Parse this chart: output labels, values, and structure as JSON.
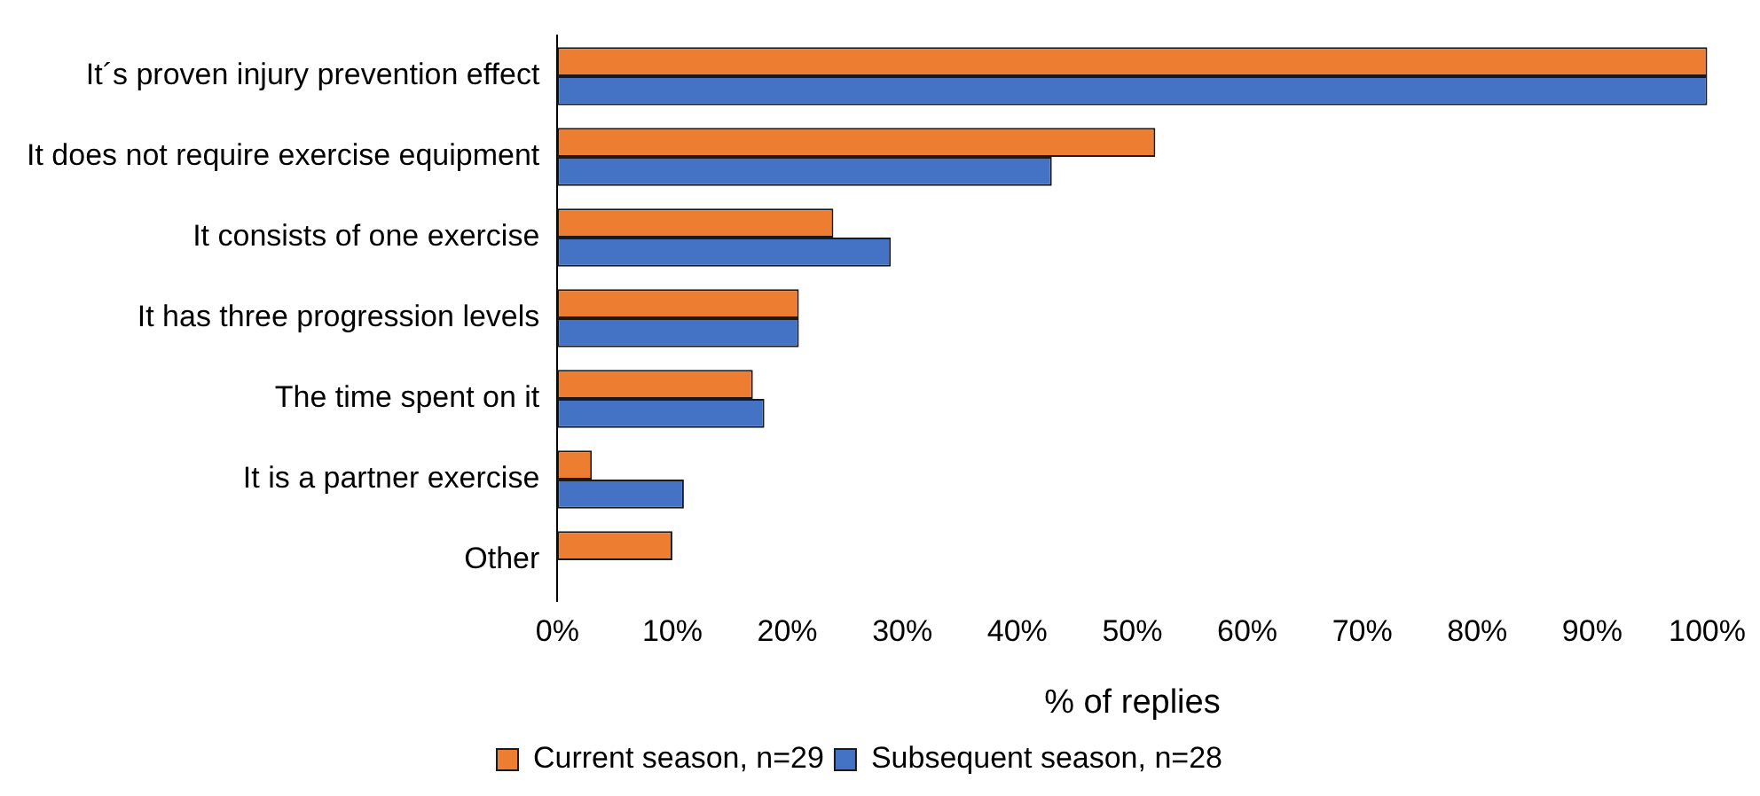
{
  "chart_data": {
    "type": "bar",
    "orientation": "horizontal",
    "xlabel": "% of replies",
    "categories": [
      "It´s proven injury prevention effect",
      "It does not require exercise equipment",
      "It consists of one exercise",
      "It has three progression levels",
      "The time spent on it",
      "It is a partner exercise",
      "Other"
    ],
    "series": [
      {
        "name": "Current season, n=29",
        "color": "#ed7d31",
        "values": [
          100,
          52,
          24,
          21,
          17,
          3,
          10
        ]
      },
      {
        "name": "Subsequent season, n=28",
        "color": "#4472c4",
        "values": [
          100,
          43,
          29,
          21,
          18,
          11,
          null
        ]
      }
    ],
    "xlim": [
      0,
      100
    ],
    "xticks": [
      {
        "value": 0,
        "label": "0%"
      },
      {
        "value": 10,
        "label": "10%"
      },
      {
        "value": 20,
        "label": "20%"
      },
      {
        "value": 30,
        "label": "30%"
      },
      {
        "value": 40,
        "label": "40%"
      },
      {
        "value": 50,
        "label": "50%"
      },
      {
        "value": 60,
        "label": "60%"
      },
      {
        "value": 70,
        "label": "70%"
      },
      {
        "value": 80,
        "label": "80%"
      },
      {
        "value": 90,
        "label": "90%"
      },
      {
        "value": 100,
        "label": "100%"
      }
    ],
    "grid": false,
    "legend": "bottom"
  }
}
